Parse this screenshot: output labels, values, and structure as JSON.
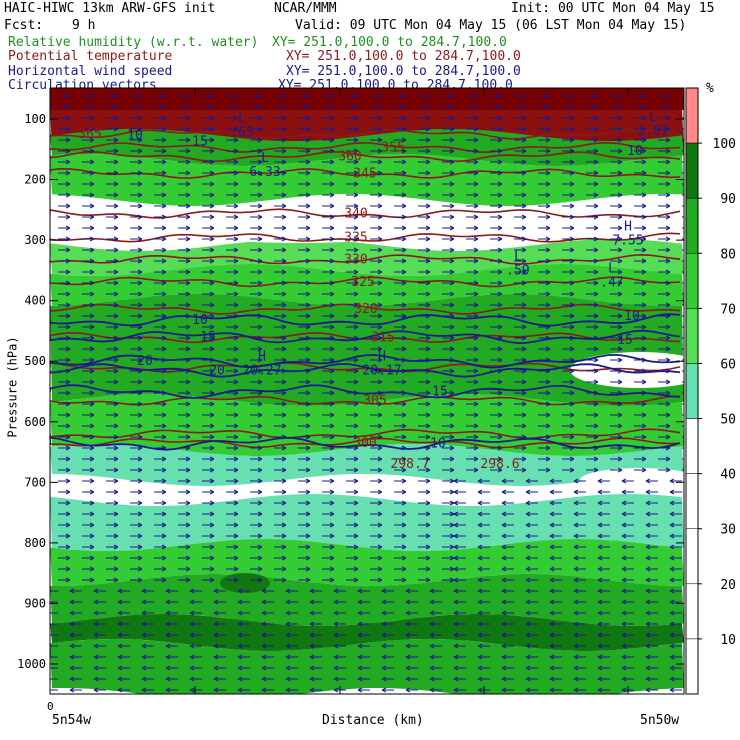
{
  "header": {
    "title": "HAIC-HIWC 13km ARW-GFS init",
    "center": "NCAR/MMM",
    "init": "Init: 00 UTC Mon 04 May 15",
    "fcst_label": "Fcst:",
    "fcst_value": "9 h",
    "valid": "Valid: 09 UTC Mon 04 May 15 (06 LST Mon 04 May 15)"
  },
  "fields": [
    {
      "label": "Relative humidity (w.r.t. water)",
      "xy": "XY= 251.0,100.0 to 284.7,100.0",
      "color": "#1f8f1f"
    },
    {
      "label": "Potential temperature",
      "xy": "XY= 251.0,100.0 to 284.7,100.0",
      "color": "#8b1a1a"
    },
    {
      "label": "Horizontal wind speed",
      "xy": "XY= 251.0,100.0 to 284.7,100.0",
      "color": "#1a1a8b"
    },
    {
      "label": "Circulation vectors",
      "xy": "XY= 251.0,100.0 to 284.7,100.0",
      "color": "#1a1a8b"
    }
  ],
  "chart_data": {
    "type": "heatmap",
    "ylabel": "Pressure (hPa)",
    "xlabel": "Distance (km)",
    "x_start_label": "5n54w",
    "x_end_label": "5n50w",
    "x_origin_label": "0",
    "y_ticks": [
      100,
      200,
      300,
      400,
      500,
      600,
      700,
      800,
      900,
      1000
    ],
    "colorbar": {
      "unit": "%",
      "levels": [
        10,
        20,
        30,
        40,
        50,
        60,
        70,
        80,
        90,
        100
      ],
      "colors": [
        "#ffffff",
        "#ffffff",
        "#ffffff",
        "#ffffff",
        "#ffffff",
        "#66e0b0",
        "#55dd55",
        "#33cc33",
        "#22aa22",
        "#117711",
        "#ff8888"
      ]
    },
    "theta_contours": [
      {
        "label": "365",
        "p": 125
      },
      {
        "label": "360",
        "p": 162
      },
      {
        "label": "355",
        "p": 147
      },
      {
        "label": "345",
        "p": 190
      },
      {
        "label": "340",
        "p": 256
      },
      {
        "label": "335",
        "p": 296
      },
      {
        "label": "330",
        "p": 332
      },
      {
        "label": "325",
        "p": 369
      },
      {
        "label": "320",
        "p": 414
      },
      {
        "label": "315",
        "p": 461
      },
      {
        "label": "305",
        "p": 565
      },
      {
        "label": "300",
        "p": 635
      },
      {
        "label": "298.7",
        "p": 670
      },
      {
        "label": "298.6",
        "p": 670
      }
    ],
    "wind_contours": [
      {
        "label": "10",
        "p": 432
      },
      {
        "label": "15",
        "p": 460
      },
      {
        "label": "20",
        "p": 500
      },
      {
        "label": "20",
        "p": 515
      },
      {
        "label": "15",
        "p": 550
      },
      {
        "label": "10",
        "p": 636
      },
      {
        "label": "10",
        "p": 425
      },
      {
        "label": "15",
        "p": 465
      },
      {
        "label": "10",
        "p": 153
      },
      {
        "label": "15",
        "p": 137
      },
      {
        "label": "10",
        "p": 127
      }
    ],
    "extrema": [
      {
        "kind": "L",
        "value": ".65",
        "x": 242,
        "p": 112
      },
      {
        "kind": "L",
        "value": "6.33",
        "x": 265,
        "p": 178
      },
      {
        "kind": "H",
        "value": "7.55",
        "x": 628,
        "p": 291
      },
      {
        "kind": "L",
        "value": ".59",
        "x": 518,
        "p": 340
      },
      {
        "kind": "L",
        "value": ".47",
        "x": 612,
        "p": 360
      },
      {
        "kind": "H",
        "value": "20.27",
        "x": 262,
        "p": 505
      },
      {
        "kind": "H",
        "value": "20.17",
        "x": 382,
        "p": 505
      },
      {
        "kind": "L",
        "value": "1.07",
        "x": 653,
        "p": 110
      }
    ]
  }
}
